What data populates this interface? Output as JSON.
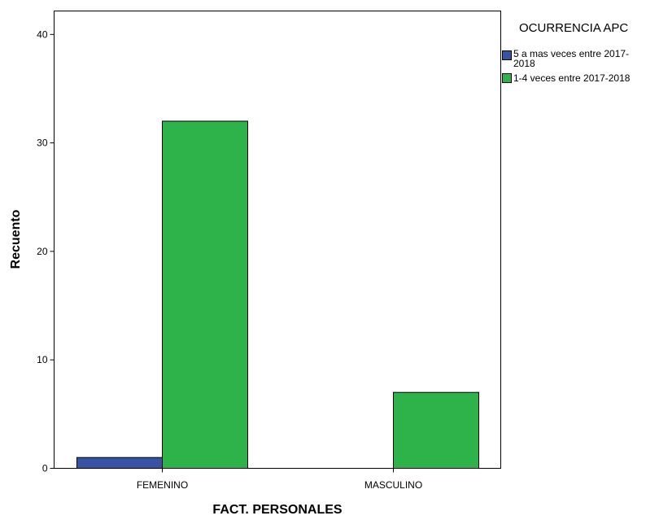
{
  "chart_data": {
    "type": "bar",
    "title": "",
    "xlabel": "FACT. PERSONALES",
    "ylabel": "Recuento",
    "categories": [
      "FEMENINO",
      "MASCULINO"
    ],
    "series": [
      {
        "name": "5 a mas veces entre 2017-2018",
        "values": [
          1,
          0
        ],
        "color": "#3953a4"
      },
      {
        "name": "1-4 veces entre 2017-2018",
        "values": [
          32,
          7
        ],
        "color": "#2db34a"
      }
    ],
    "ylim": [
      0,
      42
    ],
    "yticks": [
      0,
      10,
      20,
      30,
      40
    ],
    "grid": false,
    "legend": {
      "title": "OCURRENCIA APC",
      "placement": "right",
      "entries": [
        {
          "line1": "5 a mas veces entre 2017-",
          "line2": "2018"
        },
        {
          "line1": "1-4 veces entre 2017-2018"
        }
      ]
    }
  }
}
